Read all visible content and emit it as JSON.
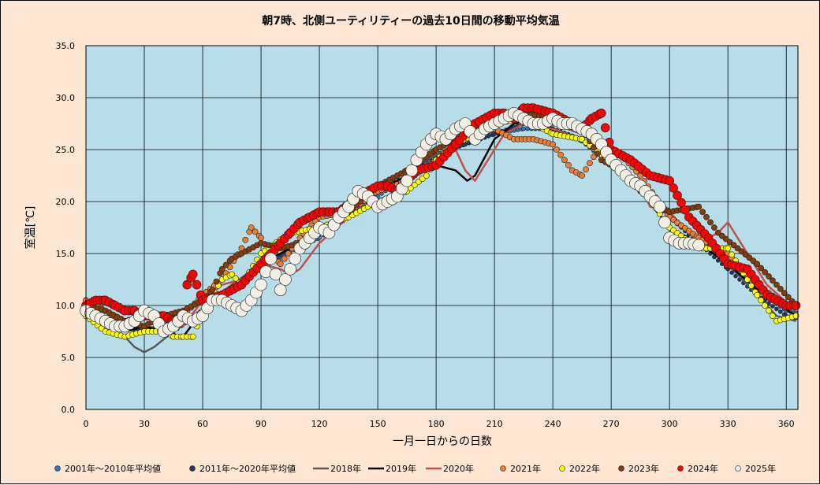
{
  "chart_data": {
    "type": "scatter",
    "title": "朝7時、北側ユーティリティーの過去10日間の移動平均気温",
    "xlabel": "一月一日からの日数",
    "ylabel": "室温[℃]",
    "xlim": [
      0,
      366
    ],
    "ylim": [
      0,
      35
    ],
    "xticks": [
      "0",
      "30",
      "60",
      "90",
      "120",
      "150",
      "180",
      "210",
      "240",
      "270",
      "300",
      "330",
      "360"
    ],
    "yticks": [
      "0.0",
      "5.0",
      "10.0",
      "15.0",
      "20.0",
      "25.0",
      "30.0",
      "35.0"
    ],
    "grid": true,
    "legend_position": "bottom",
    "series": [
      {
        "name": "2001年～2010年平均値",
        "kind": "marker",
        "size": "small",
        "color": "#2e75b6",
        "x": [
          0,
          15,
          30,
          45,
          60,
          75,
          90,
          105,
          120,
          135,
          150,
          165,
          180,
          195,
          210,
          225,
          240,
          255,
          270,
          285,
          300,
          315,
          330,
          345,
          360,
          365
        ],
        "y": [
          9.5,
          8.5,
          7.8,
          7.8,
          9.5,
          11.5,
          13.5,
          15.2,
          16.5,
          18.5,
          20.5,
          22.5,
          24.5,
          25.5,
          26.5,
          27.0,
          27.0,
          25.8,
          23.5,
          21.5,
          18.5,
          16.5,
          14.0,
          11.5,
          9.5,
          9.3
        ]
      },
      {
        "name": "2011年～2020年平均値",
        "kind": "marker",
        "size": "small",
        "color": "#203864",
        "x": [
          0,
          15,
          30,
          45,
          60,
          75,
          90,
          105,
          120,
          135,
          150,
          165,
          180,
          195,
          210,
          225,
          240,
          255,
          270,
          285,
          300,
          315,
          330,
          345,
          360,
          365
        ],
        "y": [
          9.0,
          8.0,
          7.5,
          7.5,
          9.5,
          11.5,
          13.5,
          15.5,
          17.0,
          19.0,
          21.0,
          23.0,
          24.5,
          25.5,
          26.5,
          27.5,
          27.0,
          26.0,
          24.0,
          21.5,
          18.5,
          16.0,
          13.5,
          11.0,
          9.0,
          8.8
        ]
      },
      {
        "name": "2018年",
        "kind": "line",
        "color": "#595959",
        "x": [
          0,
          10,
          20,
          25,
          30,
          35,
          45,
          55,
          65,
          75,
          90,
          105,
          120,
          135,
          150,
          165,
          180,
          195,
          210,
          225,
          240,
          255,
          270,
          285,
          300,
          315,
          330,
          345,
          355,
          365
        ],
        "y": [
          9.5,
          8.0,
          7.0,
          6.0,
          5.5,
          6.0,
          7.5,
          9.0,
          10.5,
          12.0,
          14.0,
          15.5,
          17.0,
          19.0,
          21.0,
          23.0,
          24.5,
          26.0,
          27.5,
          28.0,
          27.5,
          26.5,
          24.5,
          21.0,
          17.5,
          16.0,
          14.0,
          11.0,
          9.0,
          8.5
        ]
      },
      {
        "name": "2019年",
        "kind": "line",
        "color": "#000000",
        "x": [
          0,
          10,
          20,
          30,
          40,
          50,
          60,
          70,
          80,
          90,
          105,
          120,
          135,
          150,
          165,
          180,
          190,
          196,
          200,
          210,
          220,
          230,
          240,
          255,
          270,
          285,
          300,
          315,
          330,
          345,
          365
        ],
        "y": [
          9.0,
          8.5,
          7.5,
          8.0,
          7.5,
          7.0,
          9.5,
          11.0,
          12.5,
          14.0,
          15.5,
          17.0,
          18.5,
          21.0,
          22.5,
          23.5,
          23.0,
          22.0,
          22.5,
          26.0,
          27.5,
          28.0,
          27.0,
          26.0,
          23.5,
          21.0,
          17.5,
          16.0,
          14.0,
          11.5,
          9.0
        ]
      },
      {
        "name": "2020年",
        "kind": "line",
        "color": "#c0504d",
        "x": [
          0,
          10,
          20,
          30,
          40,
          50,
          60,
          70,
          80,
          90,
          100,
          105,
          110,
          120,
          135,
          150,
          165,
          180,
          190,
          195,
          200,
          210,
          215,
          225,
          240,
          255,
          270,
          285,
          290,
          300,
          315,
          325,
          330,
          340,
          350,
          365
        ],
        "y": [
          9.5,
          9.0,
          8.5,
          8.0,
          8.5,
          8.0,
          10.5,
          12.0,
          12.5,
          14.0,
          13.5,
          13.0,
          13.5,
          16.0,
          18.5,
          21.0,
          22.0,
          24.0,
          25.0,
          23.0,
          22.0,
          25.0,
          26.5,
          27.5,
          27.0,
          26.0,
          24.0,
          21.5,
          19.5,
          19.0,
          16.0,
          17.0,
          18.0,
          15.0,
          12.0,
          9.5
        ]
      },
      {
        "name": "2021年",
        "kind": "marker",
        "size": "medium",
        "color": "#ed7d31",
        "x": [
          0,
          10,
          20,
          30,
          40,
          50,
          60,
          70,
          80,
          85,
          90,
          95,
          100,
          110,
          120,
          135,
          150,
          165,
          180,
          195,
          210,
          220,
          230,
          240,
          250,
          255,
          265,
          275,
          285,
          300,
          315,
          330,
          345,
          360,
          365
        ],
        "y": [
          10.5,
          9.5,
          8.5,
          9.0,
          8.5,
          9.0,
          11.0,
          12.5,
          15.5,
          17.5,
          16.5,
          15.0,
          14.0,
          16.5,
          18.5,
          19.0,
          21.0,
          22.0,
          24.0,
          26.0,
          27.0,
          26.0,
          26.0,
          25.5,
          23.0,
          22.5,
          25.5,
          24.5,
          22.5,
          18.5,
          16.5,
          15.0,
          12.0,
          10.0,
          10.0
        ]
      },
      {
        "name": "2022年",
        "kind": "marker",
        "size": "medium",
        "color": "#ffff00",
        "x": [
          0,
          10,
          20,
          30,
          40,
          45,
          50,
          55,
          60,
          70,
          75,
          80,
          90,
          105,
          120,
          135,
          150,
          165,
          175,
          180,
          190,
          200,
          210,
          225,
          240,
          255,
          265,
          270,
          285,
          300,
          315,
          330,
          345,
          355,
          365
        ],
        "y": [
          9.0,
          7.5,
          7.0,
          7.5,
          7.5,
          7.0,
          7.0,
          7.0,
          9.5,
          12.5,
          13.0,
          12.0,
          15.0,
          17.0,
          17.5,
          18.5,
          20.0,
          21.0,
          22.5,
          24.0,
          25.5,
          26.5,
          27.5,
          28.0,
          26.5,
          26.0,
          24.5,
          23.5,
          21.5,
          17.5,
          15.5,
          15.5,
          11.0,
          8.5,
          9.0
        ]
      },
      {
        "name": "2023年",
        "kind": "marker",
        "size": "medium",
        "color": "#843c0c",
        "x": [
          0,
          10,
          20,
          30,
          40,
          50,
          60,
          65,
          70,
          75,
          80,
          90,
          100,
          110,
          120,
          135,
          150,
          165,
          180,
          195,
          210,
          225,
          240,
          255,
          265,
          275,
          285,
          300,
          315,
          325,
          335,
          345,
          355,
          365
        ],
        "y": [
          10.0,
          9.5,
          8.5,
          8.0,
          9.0,
          9.5,
          10.5,
          11.5,
          13.5,
          14.5,
          15.0,
          16.0,
          15.5,
          16.0,
          17.0,
          19.0,
          21.5,
          23.0,
          25.0,
          26.5,
          28.0,
          28.5,
          28.0,
          27.0,
          24.0,
          23.0,
          21.0,
          19.0,
          19.5,
          17.0,
          15.5,
          14.0,
          12.0,
          10.0
        ]
      },
      {
        "name": "2024年",
        "kind": "marker",
        "size": "large",
        "color": "#ff0000",
        "x": [
          0,
          5,
          10,
          15,
          20,
          25,
          30,
          35,
          40,
          45,
          50,
          52,
          55,
          60,
          70,
          80,
          90,
          95,
          100,
          105,
          110,
          115,
          120,
          125,
          130,
          140,
          150,
          155,
          160,
          165,
          170,
          180,
          190,
          200,
          210,
          215,
          220,
          225,
          230,
          240,
          250,
          255,
          260,
          265,
          270,
          280,
          290,
          300,
          310,
          320,
          330,
          340,
          350,
          360,
          365
        ],
        "y": [
          10.0,
          10.5,
          10.5,
          10.0,
          9.5,
          9.5,
          9.0,
          9.0,
          9.0,
          8.5,
          9.0,
          12.0,
          13.0,
          10.5,
          11.0,
          12.0,
          14.0,
          15.0,
          16.0,
          17.0,
          18.0,
          18.5,
          19.0,
          19.0,
          19.0,
          20.5,
          21.5,
          21.5,
          21.0,
          22.0,
          23.0,
          23.5,
          25.5,
          27.5,
          28.5,
          28.5,
          28.0,
          29.0,
          29.0,
          28.5,
          27.5,
          27.0,
          28.0,
          28.5,
          25.0,
          24.0,
          22.5,
          22.0,
          18.5,
          16.5,
          14.0,
          13.5,
          11.0,
          10.0,
          10.0
        ]
      },
      {
        "name": "2025年",
        "kind": "marker",
        "size": "xlarge",
        "color": "#f2efe6",
        "x": [
          0,
          5,
          10,
          15,
          20,
          25,
          30,
          35,
          40,
          45,
          50,
          55,
          60,
          65,
          70,
          75,
          80,
          85,
          90,
          95,
          100,
          105,
          110,
          115,
          120,
          125,
          130,
          135,
          140,
          145,
          150,
          155,
          160,
          165,
          170,
          175,
          180,
          185,
          190,
          195,
          200,
          205,
          210,
          215,
          220,
          225,
          230,
          235,
          240,
          245,
          250,
          255,
          260,
          265,
          270,
          275,
          280,
          285,
          290,
          295,
          300,
          305,
          310,
          315
        ],
        "y": [
          9.5,
          9.0,
          8.5,
          8.0,
          8.0,
          8.5,
          9.5,
          9.0,
          7.5,
          8.0,
          9.0,
          8.5,
          9.0,
          10.5,
          10.5,
          10.0,
          9.5,
          10.5,
          12.0,
          14.5,
          11.5,
          13.5,
          15.5,
          16.5,
          17.5,
          17.0,
          18.5,
          19.5,
          21.0,
          20.5,
          19.5,
          20.0,
          20.5,
          22.0,
          24.0,
          25.5,
          26.5,
          26.0,
          27.0,
          27.5,
          26.0,
          27.0,
          27.5,
          28.0,
          28.5,
          28.0,
          27.5,
          27.5,
          28.0,
          27.5,
          27.5,
          27.0,
          26.5,
          25.5,
          24.0,
          23.0,
          22.0,
          21.5,
          20.5,
          19.5,
          16.5,
          16.0,
          16.0,
          15.8
        ]
      }
    ]
  }
}
